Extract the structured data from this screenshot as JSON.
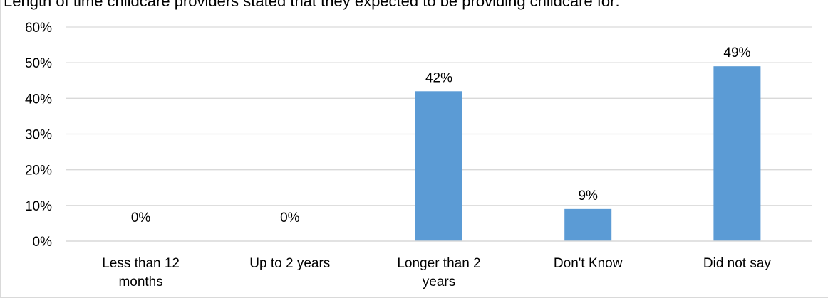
{
  "chart_data": {
    "type": "bar",
    "title": "Length of time childcare providers stated that they expected to be providing childcare for:",
    "xlabel": "",
    "ylabel": "",
    "categories": [
      "Less than 12 months",
      "Up to 2 years",
      "Longer than 2 years",
      "Don't Know",
      "Did not say"
    ],
    "category_lines": [
      [
        "Less than 12",
        "months"
      ],
      [
        "Up to 2 years"
      ],
      [
        "Longer than 2",
        "years"
      ],
      [
        "Don't Know"
      ],
      [
        "Did not say"
      ]
    ],
    "values": [
      0,
      0,
      42,
      9,
      49
    ],
    "data_labels": [
      "0%",
      "0%",
      "42%",
      "9%",
      "49%"
    ],
    "ylim": [
      0,
      60
    ],
    "y_ticks": [
      0,
      10,
      20,
      30,
      40,
      50,
      60
    ],
    "y_tick_labels": [
      "0%",
      "10%",
      "20%",
      "30%",
      "40%",
      "50%",
      "60%"
    ],
    "grid": true,
    "legend": "none",
    "colors": {
      "bar": "#5b9bd5",
      "grid": "#d9d9d9",
      "axis": "#d9d9d9",
      "text": "#000000"
    }
  }
}
